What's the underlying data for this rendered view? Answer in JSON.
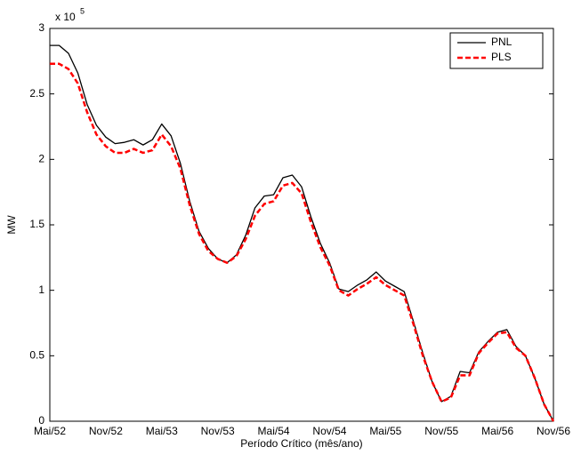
{
  "chart_data": {
    "type": "line",
    "x_label": "Período Crítico (mês/ano)",
    "y_label": "MW",
    "y_multiplier": "x 10",
    "y_exponent": "5",
    "categories": [
      "Mai/52",
      null,
      null,
      null,
      null,
      null,
      "Nov/52",
      null,
      null,
      null,
      null,
      null,
      "Mai/53",
      null,
      null,
      null,
      null,
      null,
      "Nov/53",
      null,
      null,
      null,
      null,
      null,
      "Mai/54",
      null,
      null,
      null,
      null,
      null,
      "Nov/54",
      null,
      null,
      null,
      null,
      null,
      "Mai/55",
      null,
      null,
      null,
      null,
      null,
      "Nov/55",
      null,
      null,
      null,
      null,
      null,
      "Mai/56",
      null,
      null,
      null,
      null,
      null,
      "Nov/56"
    ],
    "series": [
      {
        "name": "PNL",
        "color": "#000000",
        "line_style": "solid",
        "values": [
          2.87,
          2.87,
          2.81,
          2.66,
          2.42,
          2.26,
          2.17,
          2.12,
          2.13,
          2.15,
          2.11,
          2.15,
          2.27,
          2.18,
          1.97,
          1.68,
          1.45,
          1.32,
          1.24,
          1.21,
          1.27,
          1.42,
          1.63,
          1.72,
          1.73,
          1.86,
          1.88,
          1.79,
          1.56,
          1.36,
          1.21,
          1.01,
          0.99,
          1.04,
          1.08,
          1.14,
          1.07,
          1.03,
          0.99,
          0.76,
          0.52,
          0.3,
          0.15,
          0.19,
          0.38,
          0.37,
          0.53,
          0.61,
          0.68,
          0.7,
          0.57,
          0.5,
          0.33,
          0.13,
          0.0
        ]
      },
      {
        "name": "PLS",
        "color": "#ff0000",
        "line_style": "dashed",
        "values": [
          2.73,
          2.73,
          2.69,
          2.58,
          2.36,
          2.19,
          2.1,
          2.05,
          2.05,
          2.08,
          2.05,
          2.07,
          2.19,
          2.1,
          1.93,
          1.65,
          1.43,
          1.3,
          1.24,
          1.21,
          1.26,
          1.39,
          1.57,
          1.66,
          1.68,
          1.8,
          1.82,
          1.74,
          1.52,
          1.33,
          1.19,
          1.0,
          0.96,
          1.01,
          1.05,
          1.1,
          1.04,
          1.0,
          0.96,
          0.74,
          0.5,
          0.3,
          0.15,
          0.18,
          0.35,
          0.35,
          0.52,
          0.6,
          0.67,
          0.68,
          0.56,
          0.5,
          0.33,
          0.13,
          0.0
        ]
      }
    ],
    "ylim": [
      0,
      3
    ],
    "yticks": [
      0,
      0.5,
      1,
      1.5,
      2,
      2.5,
      3
    ],
    "grid": false,
    "legend_position": "top-right"
  }
}
